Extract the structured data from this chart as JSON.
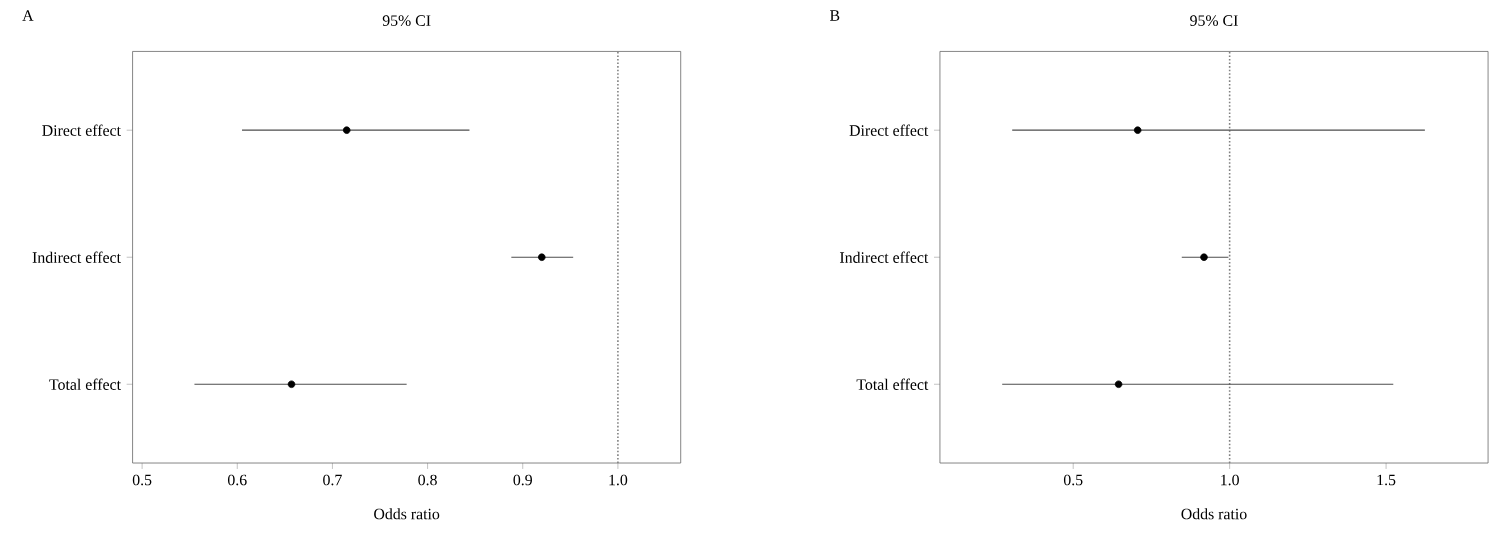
{
  "chart_data": [
    {
      "type": "scatter",
      "orientation": "horizontal",
      "title": "95% CI",
      "xlabel": "Odds ratio",
      "annotations": [
        "A"
      ],
      "categories": [
        "Direct effect",
        "Indirect effect",
        "Total effect"
      ],
      "values": [
        0.715,
        0.92,
        0.657
      ],
      "errors": [
        [
          0.605,
          0.844
        ],
        [
          0.888,
          0.953
        ],
        [
          0.555,
          0.778
        ]
      ],
      "color": "#000000",
      "grid": false,
      "xlim": [
        0.49,
        1.066
      ],
      "xticks": [
        0.5,
        0.6,
        0.7,
        0.8,
        0.9,
        {
          "value": 1,
          "label": "1.0"
        }
      ],
      "ref_lines": [
        {
          "axis": "x",
          "value": 1,
          "color": "#808080",
          "line_style": "dotted"
        }
      ]
    },
    {
      "type": "scatter",
      "orientation": "horizontal",
      "title": "95% CI",
      "xlabel": "Odds ratio",
      "annotations": [
        "B"
      ],
      "categories": [
        "Direct effect",
        "Indirect effect",
        "Total effect"
      ],
      "values": [
        0.706,
        0.918,
        0.645
      ],
      "errors": [
        [
          0.305,
          1.624
        ],
        [
          0.847,
          0.996
        ],
        [
          0.273,
          1.523
        ]
      ],
      "color": "#000000",
      "grid": false,
      "xlim": [
        0.074,
        1.826
      ],
      "xticks": [
        0.5,
        {
          "value": 1,
          "label": "1.0"
        },
        1.5
      ],
      "ref_lines": [
        {
          "axis": "x",
          "value": 1,
          "color": "#808080",
          "line_style": "dotted"
        }
      ]
    }
  ]
}
